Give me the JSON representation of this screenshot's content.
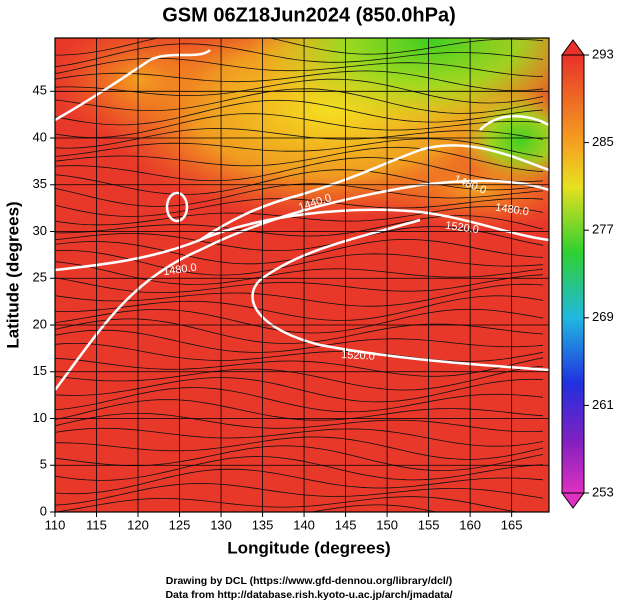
{
  "title": "GSM 06Z18Jun2024 (850.0hPa)",
  "x_label": "Longitude (degrees)",
  "y_label": "Latitude  (degrees)",
  "xlim": [
    110,
    169.5
  ],
  "ylim": [
    0,
    50.7
  ],
  "xticks": [
    110,
    115,
    120,
    125,
    130,
    135,
    140,
    145,
    150,
    155,
    160,
    165
  ],
  "yticks": [
    0,
    5,
    10,
    15,
    20,
    25,
    30,
    35,
    40,
    45
  ],
  "colorbar": {
    "lim": [
      253,
      293
    ],
    "ticks": [
      253,
      261,
      269,
      277,
      285,
      293
    ]
  },
  "contour_labels": [
    "1480.0",
    "1440.0",
    "1480.0",
    "1520.0",
    "1480.0",
    "1520.0"
  ],
  "credits": [
    "Drawing by DCL (https://www.gfd-dennou.org/library/dcl/)",
    "Data from http://database.rish.kyoto-u.ac.jp/arch/jmadata/"
  ]
}
